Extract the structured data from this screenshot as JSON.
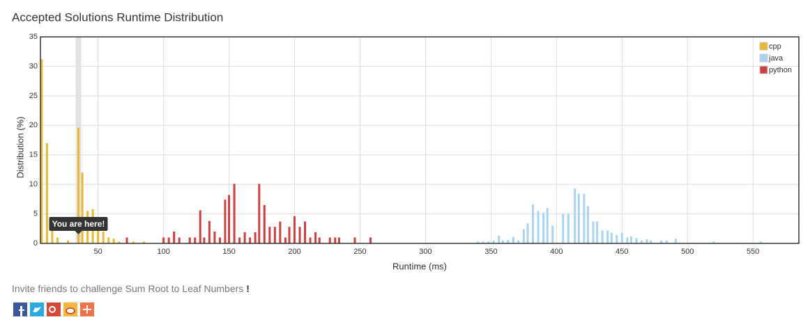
{
  "chart_data": {
    "type": "bar",
    "title": "Accepted Solutions Runtime Distribution",
    "x_label": "Runtime (ms)",
    "y_label": "Distribution (%)",
    "xlim": [
      6,
      585
    ],
    "ylim": [
      0,
      35
    ],
    "xticks": [
      50,
      100,
      150,
      200,
      250,
      300,
      350,
      400,
      450,
      500,
      550
    ],
    "yticks": [
      0,
      5,
      10,
      15,
      20,
      25,
      30,
      35
    ],
    "grid": true,
    "legend": "top-right",
    "annotation": {
      "text": "You are here!",
      "x": 35
    },
    "series": [
      {
        "name": "cpp",
        "color": "#e8b935",
        "x": [
          7,
          11,
          15,
          19,
          27,
          35,
          38,
          42,
          46,
          50,
          54,
          58,
          62,
          66,
          77,
          85
        ],
        "values": [
          31.2,
          17,
          3.6,
          1,
          0.5,
          19.6,
          12,
          5.5,
          5.8,
          3.5,
          2,
          1,
          0.8,
          0.3,
          0.3,
          0.3
        ]
      },
      {
        "name": "java",
        "color": "#a9d3f0",
        "x": [
          340,
          344,
          348,
          352,
          356,
          359,
          363,
          367,
          371,
          375,
          378,
          382,
          386,
          390,
          393,
          397,
          405,
          409,
          414,
          417,
          421,
          424,
          428,
          431,
          435,
          439,
          442,
          446,
          450,
          454,
          457,
          461,
          465,
          469,
          472,
          480,
          484,
          491,
          520,
          556,
          585
        ],
        "values": [
          0.3,
          0.3,
          0.3,
          0.5,
          1.3,
          0.5,
          0.6,
          1.1,
          0.5,
          2.4,
          3.4,
          6.6,
          5.5,
          5.2,
          6,
          3,
          5,
          5,
          9.3,
          8.4,
          8.4,
          6.3,
          3.7,
          3.7,
          2.2,
          2.2,
          1.8,
          1.4,
          1.8,
          1,
          1.2,
          0.9,
          0.5,
          0.7,
          0.5,
          0.5,
          0.5,
          0.8,
          0.3,
          0.3,
          0.3
        ]
      },
      {
        "name": "python",
        "color": "#c9403f",
        "x": [
          72,
          100,
          104,
          108,
          112,
          120,
          124,
          128,
          131,
          135,
          139,
          143,
          147,
          150,
          154,
          158,
          162,
          166,
          170,
          173,
          177,
          181,
          185,
          189,
          193,
          196,
          200,
          204,
          208,
          212,
          216,
          219,
          227,
          231,
          234,
          246,
          258
        ],
        "values": [
          1,
          1,
          1,
          2,
          1,
          1,
          1,
          5.6,
          1,
          3.8,
          2,
          1,
          7.4,
          8.2,
          10.1,
          1,
          1.9,
          1,
          1.9,
          10.1,
          6.5,
          2.8,
          2.8,
          3.7,
          1,
          2.8,
          4.6,
          2.8,
          3.7,
          1,
          1.9,
          1,
          1,
          1,
          1,
          1,
          1
        ]
      }
    ]
  },
  "footer": {
    "text": "Invite friends to challenge Sum Root to Leaf Numbers",
    "mark": "!"
  }
}
